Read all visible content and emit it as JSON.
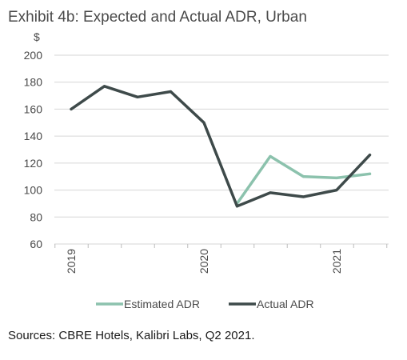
{
  "chart_data": {
    "type": "line",
    "title": "Exhibit 4b: Expected and Actual ADR, Urban",
    "y_unit": "$",
    "ylim": [
      60,
      200
    ],
    "y_ticks": [
      60,
      80,
      100,
      120,
      140,
      160,
      180,
      200
    ],
    "x_tick_labels": [
      "2019",
      "2020",
      "2021"
    ],
    "grid": true,
    "legend_position": "bottom",
    "series": [
      {
        "name": "Estimated ADR",
        "color": "#8cc2ad",
        "values": [
          null,
          null,
          null,
          null,
          null,
          90,
          125,
          110,
          109,
          112
        ]
      },
      {
        "name": "Actual ADR",
        "color": "#3e4a4a",
        "values": [
          160,
          177,
          169,
          173,
          150,
          88,
          98,
          95,
          100,
          126
        ]
      }
    ],
    "source": "Sources: CBRE Hotels, Kalibri Labs, Q2 2021."
  }
}
